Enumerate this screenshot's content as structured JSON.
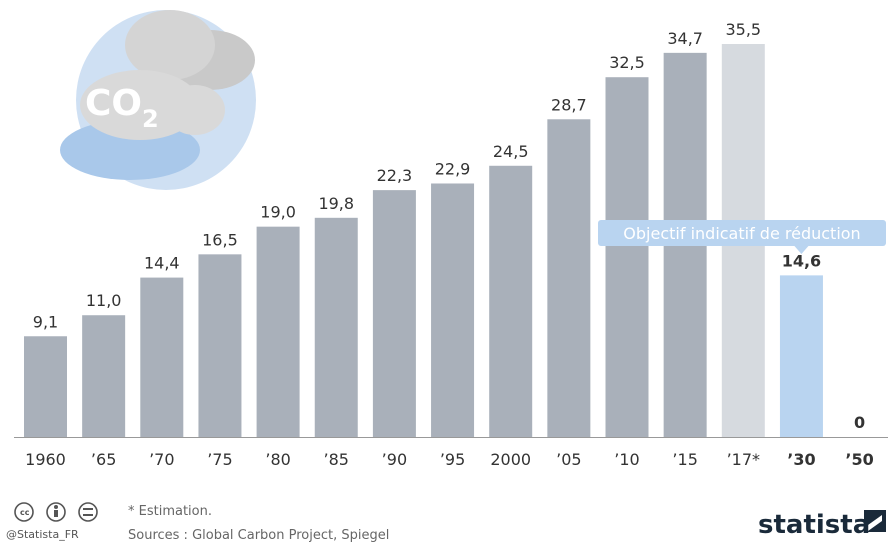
{
  "chart_data": {
    "type": "bar",
    "categories": [
      "1960",
      "’65",
      "’70",
      "’75",
      "’80",
      "’85",
      "’90",
      "’95",
      "2000",
      "’05",
      "’10",
      "’15",
      "’17*",
      "’30",
      "’50"
    ],
    "values": [
      9.1,
      11.0,
      14.4,
      16.5,
      19.0,
      19.8,
      22.3,
      22.9,
      24.5,
      28.7,
      32.5,
      34.7,
      35.5,
      14.6,
      0
    ],
    "value_labels": [
      "9,1",
      "11,0",
      "14,4",
      "16,5",
      "19,0",
      "19,8",
      "22,3",
      "22,9",
      "24,5",
      "28,7",
      "32,5",
      "34,7",
      "35,5",
      "14,6",
      "0"
    ],
    "colors": [
      "#a9b0ba",
      "#a9b0ba",
      "#a9b0ba",
      "#a9b0ba",
      "#a9b0ba",
      "#a9b0ba",
      "#a9b0ba",
      "#a9b0ba",
      "#a9b0ba",
      "#a9b0ba",
      "#a9b0ba",
      "#a9b0ba",
      "#d6dadf",
      "#b9d4f0",
      "#b9d4f0"
    ],
    "annotation": "Objectif indicatif de réduction",
    "footnote": "* Estimation.",
    "source": "Sources : Global Carbon Project, Spiegel",
    "handle": "@Statista_FR",
    "brand": "statista",
    "illustration_label": "CO",
    "illustration_subscript": "2"
  }
}
